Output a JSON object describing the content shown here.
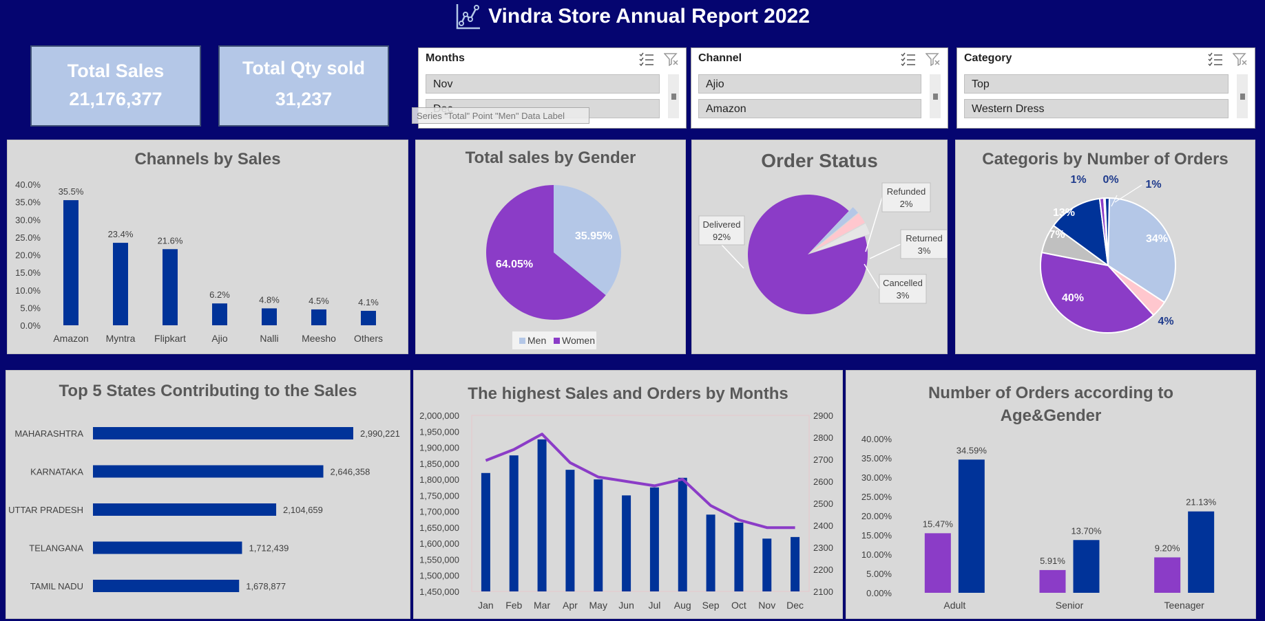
{
  "header": {
    "title": "Vindra Store Annual Report 2022",
    "icon": "line-chart-icon"
  },
  "kpis": {
    "sales": {
      "label": "Total Sales",
      "value": "21,176,377"
    },
    "qty": {
      "label": "Total Qty sold",
      "value": "31,237"
    }
  },
  "slicers": {
    "months": {
      "title": "Months",
      "items": [
        "Nov",
        "Dec"
      ]
    },
    "channel": {
      "title": "Channel",
      "items": [
        "Ajio",
        "Amazon"
      ]
    },
    "category": {
      "title": "Category",
      "items": [
        "Top",
        "Western Dress"
      ]
    }
  },
  "tooltip": "Series \"Total\" Point \"Men\" Data Label",
  "colors": {
    "navy": "#003399",
    "purple": "#8b3cc7",
    "light_blue": "#b4c7e7",
    "pink": "#ffc7ce",
    "gray": "#c0c0c0",
    "background": "#050570"
  },
  "chart_data": [
    {
      "id": "channels",
      "type": "bar",
      "title": "Channels by Sales",
      "categories": [
        "Amazon",
        "Myntra",
        "Flipkart",
        "Ajio",
        "Nalli",
        "Meesho",
        "Others"
      ],
      "values": [
        35.5,
        23.4,
        21.6,
        6.2,
        4.8,
        4.5,
        4.1
      ],
      "data_labels": [
        "35.5%",
        "23.4%",
        "21.6%",
        "6.2%",
        "4.8%",
        "4.5%",
        "4.1%"
      ],
      "y_ticks": [
        "0.0%",
        "5.0%",
        "10.0%",
        "15.0%",
        "20.0%",
        "25.0%",
        "30.0%",
        "35.0%",
        "40.0%"
      ],
      "ylim": [
        0,
        40
      ]
    },
    {
      "id": "gender",
      "type": "pie",
      "title": "Total sales by Gender",
      "labels": [
        "Men",
        "Women"
      ],
      "values": [
        35.95,
        64.05
      ],
      "data_labels": [
        "35.95%",
        "64.05%"
      ],
      "legend": [
        "Men",
        "Women"
      ],
      "legend_position": "bottom"
    },
    {
      "id": "order_status",
      "type": "pie",
      "title": "Order Status",
      "labels": [
        "Delivered",
        "Refunded",
        "Returned",
        "Cancelled"
      ],
      "values": [
        92,
        2,
        3,
        3
      ],
      "data_labels": [
        "92%",
        "2%",
        "3%",
        "3%"
      ]
    },
    {
      "id": "categories",
      "type": "pie",
      "title": "Categoris by Number of Orders",
      "values": [
        34,
        4,
        40,
        7,
        13,
        1,
        0,
        1
      ],
      "data_labels": [
        "34%",
        "4%",
        "40%",
        "7%",
        "13%",
        "1%",
        "0%",
        "1%"
      ]
    },
    {
      "id": "states",
      "type": "bar",
      "orientation": "horizontal",
      "title": "Top 5 States Contributing to the Sales",
      "categories": [
        "MAHARASHTRA",
        "KARNATAKA",
        "UTTAR PRADESH",
        "TELANGANA",
        "TAMIL NADU"
      ],
      "values": [
        2990221,
        2646358,
        2104659,
        1712439,
        1678877
      ],
      "data_labels": [
        "2,990,221",
        "2,646,358",
        "2,104,659",
        "1,712,439",
        "1,678,877"
      ]
    },
    {
      "id": "months",
      "type": "bar",
      "title": "The highest Sales and Orders by Months",
      "categories": [
        "Jan",
        "Feb",
        "Mar",
        "Apr",
        "May",
        "Jun",
        "Jul",
        "Aug",
        "Sep",
        "Oct",
        "Nov",
        "Dec"
      ],
      "series": [
        {
          "type": "bar",
          "axis": "left",
          "values": [
            1820000,
            1875000,
            1925000,
            1830000,
            1800000,
            1750000,
            1775000,
            1805000,
            1690000,
            1665000,
            1615000,
            1620000
          ]
        },
        {
          "type": "line",
          "axis": "right",
          "values": [
            2695,
            2745,
            2815,
            2685,
            2620,
            2600,
            2580,
            2610,
            2490,
            2425,
            2390,
            2390
          ]
        }
      ],
      "y_ticks": [
        "1,450,000",
        "1,500,000",
        "1,550,000",
        "1,600,000",
        "1,650,000",
        "1,700,000",
        "1,750,000",
        "1,800,000",
        "1,850,000",
        "1,900,000",
        "1,950,000",
        "2,000,000"
      ],
      "y2_ticks": [
        "2100",
        "2200",
        "2300",
        "2400",
        "2500",
        "2600",
        "2700",
        "2800",
        "2900"
      ],
      "ylim": [
        1450000,
        2000000
      ],
      "y2lim": [
        2100,
        2900
      ]
    },
    {
      "id": "age_gender",
      "type": "bar",
      "title": "Number of Orders according to Age&Gender",
      "categories": [
        "Adult",
        "Senior",
        "Teenager"
      ],
      "series": [
        {
          "values": [
            15.47,
            5.91,
            9.2
          ],
          "data_labels": [
            "15.47%",
            "5.91%",
            "9.20%"
          ]
        },
        {
          "values": [
            34.59,
            13.7,
            21.13
          ],
          "data_labels": [
            "34.59%",
            "13.70%",
            "21.13%"
          ]
        }
      ],
      "y_ticks": [
        "0.00%",
        "5.00%",
        "10.00%",
        "15.00%",
        "20.00%",
        "25.00%",
        "30.00%",
        "35.00%",
        "40.00%"
      ],
      "ylim": [
        0,
        40
      ]
    }
  ]
}
